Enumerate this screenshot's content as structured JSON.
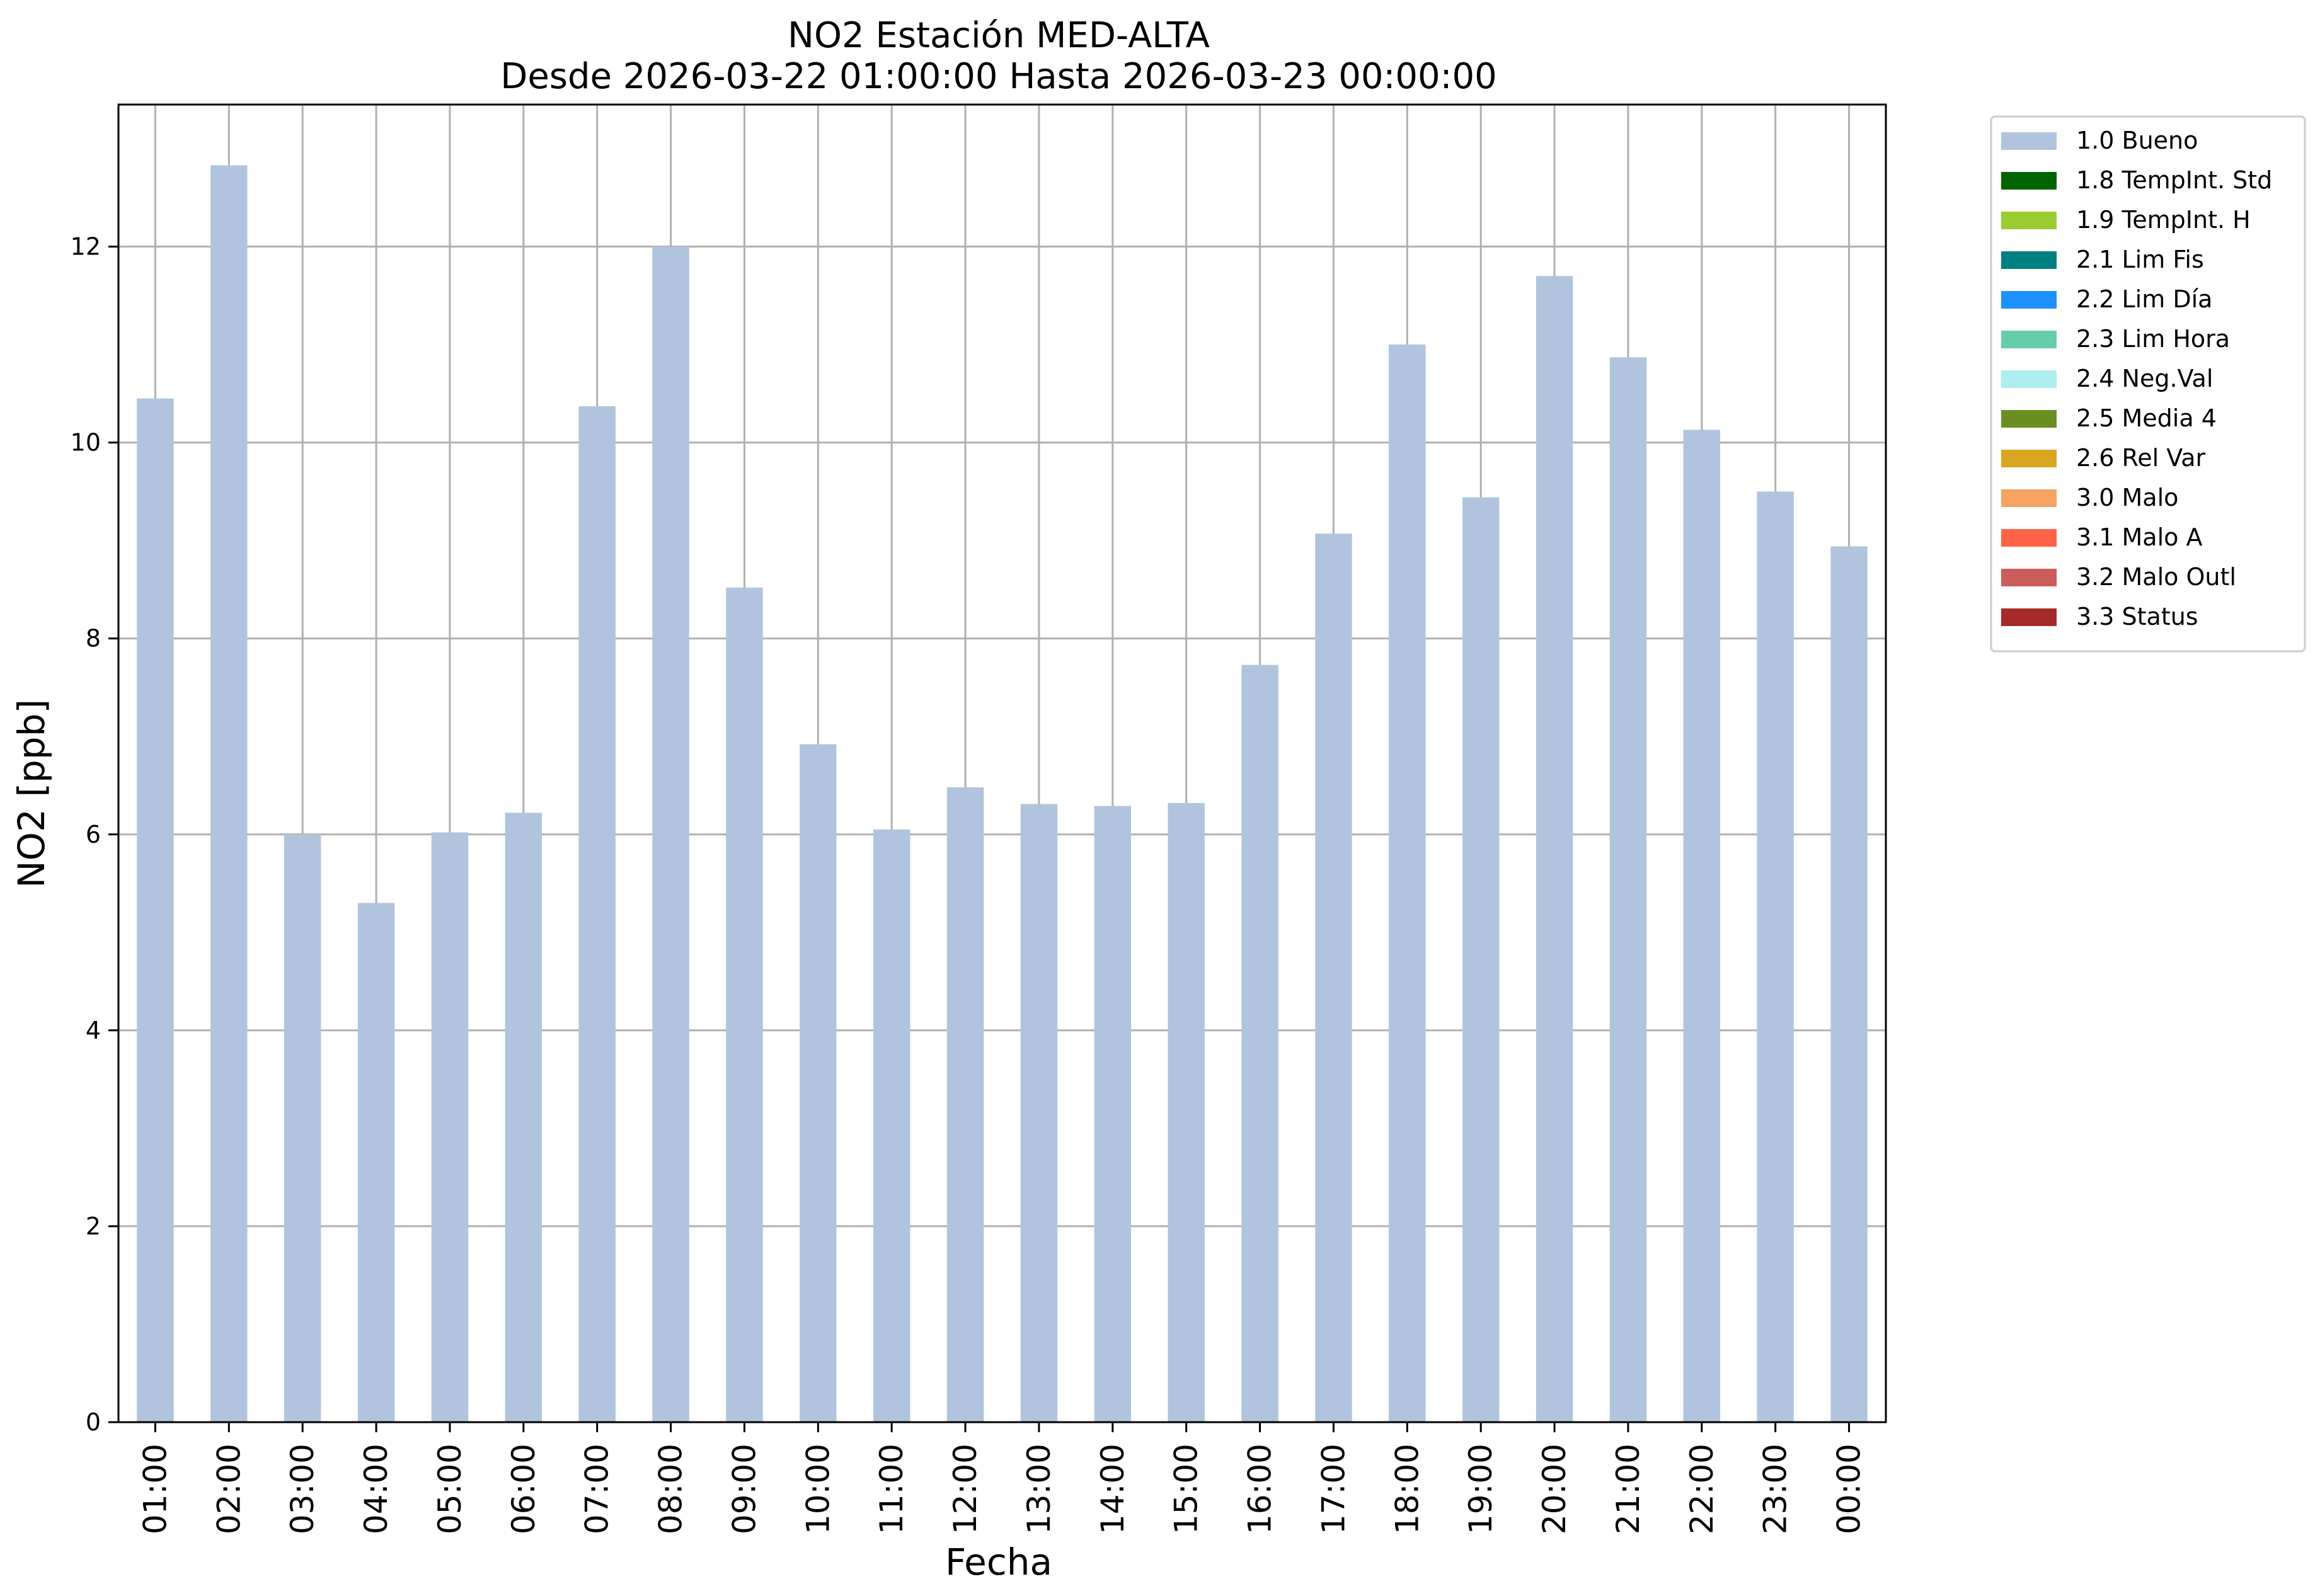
{
  "chart_data": {
    "type": "bar",
    "title": "NO2 Estación MED-ALTA",
    "subtitle": "Desde 2026-03-22 01:00:00 Hasta 2026-03-23 00:00:00",
    "xlabel": "Fecha",
    "ylabel": "NO2 [ppb]",
    "ylim": [
      0,
      13.45
    ],
    "yticks": [
      "0",
      "2",
      "4",
      "6",
      "8",
      "10",
      "12"
    ],
    "grid": true,
    "legend_position": "outside top-right",
    "categories": [
      "01:00",
      "02:00",
      "03:00",
      "04:00",
      "05:00",
      "06:00",
      "07:00",
      "08:00",
      "09:00",
      "10:00",
      "11:00",
      "12:00",
      "13:00",
      "14:00",
      "15:00",
      "16:00",
      "17:00",
      "18:00",
      "19:00",
      "20:00",
      "21:00",
      "22:00",
      "23:00",
      "00:00"
    ],
    "series": [
      {
        "name": "1.0 Bueno",
        "color": "#b0c4de",
        "values": [
          10.45,
          12.83,
          6.0,
          5.3,
          6.02,
          6.22,
          10.37,
          12.0,
          8.52,
          6.92,
          6.05,
          6.48,
          6.31,
          6.29,
          6.32,
          7.73,
          9.07,
          11.0,
          9.44,
          11.7,
          10.87,
          10.13,
          9.5,
          8.94
        ]
      }
    ],
    "legend": [
      {
        "label": "1.0 Bueno",
        "color": "#b0c4de"
      },
      {
        "label": "1.8 TempInt. Std",
        "color": "#006400"
      },
      {
        "label": "1.9 TempInt. H",
        "color": "#9acd32"
      },
      {
        "label": "2.1 Lim Fis",
        "color": "#008080"
      },
      {
        "label": "2.2 Lim Día",
        "color": "#1e90ff"
      },
      {
        "label": "2.3 Lim Hora",
        "color": "#66cdaa"
      },
      {
        "label": "2.4 Neg.Val",
        "color": "#afeeee"
      },
      {
        "label": "2.5 Media 4",
        "color": "#6b8e23"
      },
      {
        "label": "2.6 Rel Var",
        "color": "#daa520"
      },
      {
        "label": "3.0 Malo",
        "color": "#f4a460"
      },
      {
        "label": "3.1 Malo A",
        "color": "#ff6347"
      },
      {
        "label": "3.2 Malo Outl",
        "color": "#cd5c5c"
      },
      {
        "label": "3.3 Status",
        "color": "#a52a2a"
      }
    ]
  }
}
